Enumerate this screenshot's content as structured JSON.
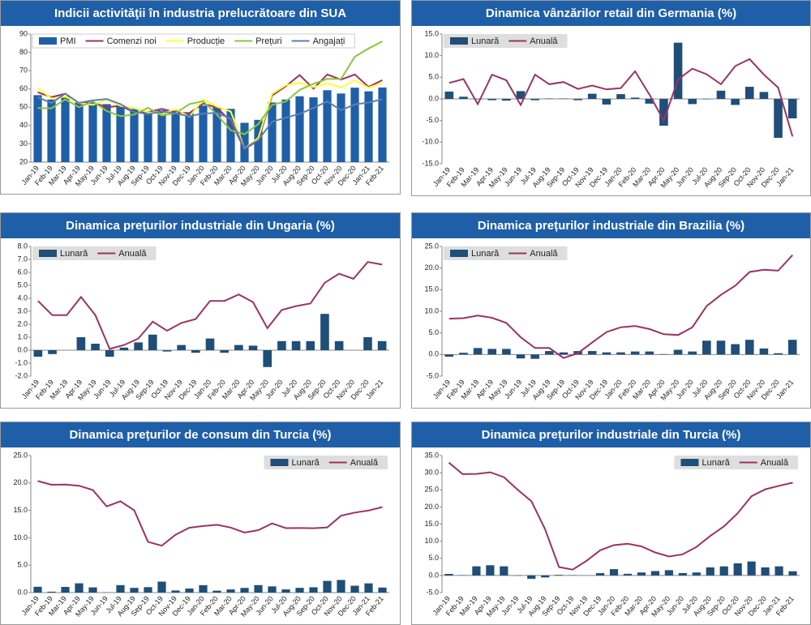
{
  "chart_data": [
    {
      "type": "combo",
      "title": "Indicii activităţii în industria prelucrătoare din SUA",
      "legend": "upper left",
      "categories": [
        "Jan-19",
        "Feb-19",
        "Mar-19",
        "Apr-19",
        "May-19",
        "Jun-19",
        "Jul-19",
        "Aug-19",
        "Sep-19",
        "Oct-19",
        "Nov-19",
        "Dec-19",
        "Jan-20",
        "Feb-20",
        "Mar-20",
        "Apr-20",
        "May-20",
        "Jun-20",
        "Jul-20",
        "Aug-20",
        "Sep-20",
        "Oct-20",
        "Nov-20",
        "Dec-20",
        "Jan-21",
        "Feb-21"
      ],
      "ylim": [
        20,
        90
      ],
      "yticks": [
        20,
        30,
        40,
        50,
        60,
        70,
        80,
        90
      ],
      "series": [
        {
          "name": "PMI",
          "type": "bar",
          "color": "#1f5fa8",
          "values": [
            56.6,
            54.2,
            55.3,
            52.8,
            52.1,
            51.7,
            51.2,
            49.1,
            47.8,
            48.3,
            48.1,
            47.2,
            50.9,
            50.1,
            49.1,
            41.5,
            43.1,
            52.6,
            54.2,
            56.0,
            55.4,
            59.3,
            57.5,
            60.7,
            58.7,
            60.8
          ]
        },
        {
          "name": "Comenzi noi",
          "type": "line",
          "color": "#993366",
          "values": [
            58.2,
            55.5,
            57.4,
            51.7,
            52.7,
            50.0,
            50.8,
            47.2,
            47.3,
            49.1,
            47.2,
            46.8,
            52.0,
            49.8,
            42.2,
            27.1,
            31.8,
            56.4,
            61.5,
            67.6,
            60.2,
            67.9,
            65.1,
            67.9,
            61.1,
            64.8
          ]
        },
        {
          "name": "Producție",
          "type": "line",
          "color": "#ffff33",
          "values": [
            60.5,
            54.8,
            55.8,
            52.3,
            51.3,
            54.1,
            50.8,
            49.5,
            47.3,
            46.2,
            49.1,
            44.8,
            54.3,
            50.3,
            47.7,
            27.5,
            33.2,
            57.3,
            62.1,
            63.3,
            61.0,
            63.0,
            60.8,
            64.8,
            60.7,
            63.2
          ]
        },
        {
          "name": "Prețuri",
          "type": "line",
          "color": "#8cc63f",
          "values": [
            49.6,
            49.4,
            54.3,
            50.0,
            53.2,
            47.9,
            45.1,
            46.0,
            49.7,
            45.5,
            46.7,
            51.7,
            53.3,
            45.9,
            37.4,
            35.3,
            40.8,
            51.3,
            53.2,
            59.5,
            62.8,
            65.5,
            65.4,
            77.6,
            82.1,
            86.0
          ]
        },
        {
          "name": "Angajați",
          "type": "line",
          "color": "#5b7fb5",
          "values": [
            55.5,
            52.3,
            57.5,
            52.4,
            53.7,
            54.5,
            51.7,
            47.4,
            46.3,
            47.7,
            46.6,
            45.1,
            46.6,
            46.9,
            43.8,
            27.5,
            32.1,
            42.1,
            44.3,
            46.4,
            49.6,
            53.2,
            48.4,
            51.5,
            52.6,
            54.4
          ]
        }
      ]
    },
    {
      "type": "combo",
      "title": "Dinamica vânzărilor retail din Germania (%)",
      "legend": "upper left",
      "categories": [
        "Jan-19",
        "Feb-19",
        "Mar-19",
        "Apr-19",
        "May-19",
        "Jun-19",
        "Jul-19",
        "Aug-19",
        "Sep-19",
        "Oct-19",
        "Nov-19",
        "Dec-19",
        "Jan-20",
        "Feb-20",
        "Mar-20",
        "Apr-20",
        "May-20",
        "Jun-20",
        "Jul-20",
        "Aug-20",
        "Sep-20",
        "Oct-20",
        "Nov-20",
        "Dec-20",
        "Jan-21"
      ],
      "ylim": [
        -15,
        15
      ],
      "yticks": [
        {
          "value": -15,
          "label": "-15.0"
        },
        {
          "value": -10,
          "label": "-10.0"
        },
        {
          "value": -5,
          "label": "-5.0"
        },
        {
          "value": 0,
          "label": "0.0"
        },
        {
          "value": 5,
          "label": "5.0"
        },
        {
          "value": 10,
          "label": "10.0"
        },
        {
          "value": 15,
          "label": "15.0"
        }
      ],
      "series": [
        {
          "name": "Lunară",
          "type": "bar",
          "color": "#1f4e79",
          "values": [
            1.7,
            0.5,
            -0.1,
            -0.3,
            -0.4,
            1.8,
            -0.3,
            0.1,
            0.1,
            -0.3,
            1.2,
            -1.3,
            1.1,
            0.3,
            -1.1,
            -6.2,
            13.0,
            -1.2,
            -0.1,
            1.9,
            -1.4,
            2.8,
            1.6,
            -9.0,
            -4.5
          ]
        },
        {
          "name": "Anuală",
          "type": "line",
          "color": "#993366",
          "values": [
            3.7,
            4.6,
            -1.2,
            5.6,
            4.3,
            -1.4,
            5.6,
            3.4,
            3.9,
            2.3,
            3.1,
            2.2,
            2.5,
            6.4,
            1.0,
            -5.0,
            4.5,
            7.0,
            5.7,
            3.4,
            7.6,
            9.2,
            5.6,
            2.6,
            -8.7
          ]
        }
      ]
    },
    {
      "type": "combo",
      "title": "Dinamica prețurilor industriale din Ungaria (%)",
      "legend": "upper left",
      "categories": [
        "Jan-19",
        "Feb-19",
        "Mar-19",
        "Apr-19",
        "May-19",
        "Jun-19",
        "Jul-19",
        "Aug-19",
        "Sep-19",
        "Oct-19",
        "Nov-19",
        "Dec-19",
        "Jan-20",
        "Feb-20",
        "Mar-20",
        "Apr-20",
        "May-20",
        "Jun-20",
        "Jul-20",
        "Aug-20",
        "Sep-20",
        "Oct-20",
        "Nov-20",
        "Dec-20",
        "Jan-21"
      ],
      "ylim": [
        -2,
        8
      ],
      "yticks": [
        {
          "value": -2,
          "label": "-2.0"
        },
        {
          "value": -1,
          "label": "-1.0"
        },
        {
          "value": 0,
          "label": "0.0"
        },
        {
          "value": 1,
          "label": "1.0"
        },
        {
          "value": 2,
          "label": "2.0"
        },
        {
          "value": 3,
          "label": "3.0"
        },
        {
          "value": 4,
          "label": "4.0"
        },
        {
          "value": 5,
          "label": "5.0"
        },
        {
          "value": 6,
          "label": "6.0"
        },
        {
          "value": 7,
          "label": "7.0"
        },
        {
          "value": 8,
          "label": "8.0"
        }
      ],
      "series": [
        {
          "name": "Lunară",
          "type": "bar",
          "color": "#1f4e79",
          "values": [
            -0.5,
            -0.3,
            0.0,
            1.0,
            0.5,
            -0.5,
            0.2,
            0.6,
            1.2,
            -0.1,
            0.4,
            -0.2,
            0.9,
            -0.2,
            0.4,
            0.35,
            -1.3,
            0.7,
            0.7,
            0.7,
            2.8,
            0.7,
            0.0,
            1.0,
            0.7
          ]
        },
        {
          "name": "Anuală",
          "type": "line",
          "color": "#993366",
          "values": [
            3.8,
            2.7,
            2.7,
            4.1,
            2.7,
            0.1,
            0.4,
            0.9,
            2.2,
            1.5,
            2.1,
            2.4,
            3.8,
            3.8,
            4.3,
            3.7,
            1.7,
            3.1,
            3.4,
            3.6,
            5.2,
            5.9,
            5.5,
            6.8,
            6.6
          ]
        }
      ]
    },
    {
      "type": "combo",
      "title": "Dinamica prețurilor industriale din Brazilia (%)",
      "legend": "upper left",
      "categories": [
        "Jan-19",
        "Feb-19",
        "Mar-19",
        "Apr-19",
        "May-19",
        "Jun-19",
        "Jul-19",
        "Aug-19",
        "Sep-19",
        "Oct-19",
        "Nov-19",
        "Dec-19",
        "Jan-20",
        "Feb-20",
        "Mar-20",
        "Apr-20",
        "May-20",
        "Jun-20",
        "Jul-20",
        "Aug-20",
        "Sep-20",
        "Oct-20",
        "Nov-20",
        "Dec-20",
        "Jan-21"
      ],
      "ylim": [
        -5,
        25
      ],
      "yticks": [
        {
          "value": -5,
          "label": "-5.0"
        },
        {
          "value": 0,
          "label": "0.0"
        },
        {
          "value": 5,
          "label": "5.0"
        },
        {
          "value": 10,
          "label": "10.0"
        },
        {
          "value": 15,
          "label": "15.0"
        },
        {
          "value": 20,
          "label": "20.0"
        },
        {
          "value": 25,
          "label": "25.0"
        }
      ],
      "series": [
        {
          "name": "Lunară",
          "type": "bar",
          "color": "#1f4e79",
          "values": [
            -0.5,
            0.4,
            1.5,
            1.3,
            1.3,
            -0.9,
            -1.0,
            0.8,
            0.5,
            0.8,
            0.8,
            0.5,
            0.5,
            0.7,
            0.7,
            0.1,
            1.1,
            0.7,
            3.2,
            3.2,
            2.4,
            3.4,
            1.4,
            0.3,
            3.4
          ]
        },
        {
          "name": "Anuală",
          "type": "line",
          "color": "#993366",
          "values": [
            8.3,
            8.4,
            9.0,
            8.5,
            7.3,
            4.0,
            1.5,
            1.5,
            -0.8,
            0.3,
            2.8,
            5.2,
            6.3,
            6.6,
            5.9,
            4.7,
            4.5,
            6.3,
            11.2,
            13.8,
            15.9,
            19.1,
            19.6,
            19.4,
            23.0
          ]
        }
      ]
    },
    {
      "type": "combo",
      "title": "Dinamica prețurilor de consum din Turcia (%)",
      "legend": "upper right",
      "categories": [
        "Jan-19",
        "Feb-19",
        "Mar-19",
        "Apr-19",
        "May-19",
        "Jun-19",
        "Jul-19",
        "Aug-19",
        "Sep-19",
        "Oct-19",
        "Nov-19",
        "Dec-19",
        "Jan-20",
        "Feb-20",
        "Mar-20",
        "Apr-20",
        "May-20",
        "Jun-20",
        "Jul-20",
        "Aug-20",
        "Sep-20",
        "Oct-20",
        "Nov-20",
        "Dec-20",
        "Jan-21",
        "Feb-21"
      ],
      "ylim": [
        0,
        25
      ],
      "yticks": [
        {
          "value": 0,
          "label": "0.0"
        },
        {
          "value": 5,
          "label": "5.0"
        },
        {
          "value": 10,
          "label": "10.0"
        },
        {
          "value": 15,
          "label": "15.0"
        },
        {
          "value": 20,
          "label": "20.0"
        },
        {
          "value": 25,
          "label": "25.0"
        }
      ],
      "series": [
        {
          "name": "Lunară",
          "type": "bar",
          "color": "#1f4e79",
          "values": [
            1.06,
            0.16,
            1.03,
            1.69,
            0.95,
            0.03,
            1.36,
            0.86,
            0.99,
            2.0,
            0.38,
            0.74,
            1.35,
            0.35,
            0.57,
            0.85,
            1.36,
            1.13,
            0.58,
            0.86,
            0.97,
            2.13,
            2.3,
            1.25,
            1.68,
            0.91
          ]
        },
        {
          "name": "Anuală",
          "type": "line",
          "color": "#993366",
          "values": [
            20.35,
            19.67,
            19.71,
            19.5,
            18.71,
            15.72,
            16.65,
            15.01,
            9.26,
            8.55,
            10.56,
            11.84,
            12.15,
            12.37,
            11.86,
            10.94,
            11.39,
            12.62,
            11.76,
            11.77,
            11.75,
            11.89,
            14.03,
            14.6,
            14.97,
            15.61
          ]
        }
      ]
    },
    {
      "type": "combo",
      "title": "Dinamica prețurilor industriale din Turcia (%)",
      "legend": "upper right",
      "categories": [
        "Jan-19",
        "Feb-19",
        "Mar-19",
        "Apr-19",
        "May-19",
        "Jun-19",
        "Jul-19",
        "Aug-19",
        "Sep-19",
        "Oct-19",
        "Nov-19",
        "Dec-19",
        "Jan-20",
        "Feb-20",
        "Mar-20",
        "Apr-20",
        "May-20",
        "Jun-20",
        "Jul-20",
        "Aug-20",
        "Sep-20",
        "Oct-20",
        "Nov-20",
        "Dec-20",
        "Jan-21",
        "Feb-21"
      ],
      "ylim": [
        -5,
        35
      ],
      "yticks": [
        {
          "value": -5,
          "label": "-5.0"
        },
        {
          "value": 0,
          "label": "0.0"
        },
        {
          "value": 5,
          "label": "5.0"
        },
        {
          "value": 10,
          "label": "10.0"
        },
        {
          "value": 15,
          "label": "15.0"
        },
        {
          "value": 20,
          "label": "20.0"
        },
        {
          "value": 25,
          "label": "25.0"
        },
        {
          "value": 30,
          "label": "30.0"
        },
        {
          "value": 35,
          "label": "35.0"
        }
      ],
      "series": [
        {
          "name": "Lunară",
          "type": "bar",
          "color": "#1f4e79",
          "values": [
            0.45,
            0.09,
            2.67,
            2.98,
            2.67,
            -0.09,
            -0.99,
            -0.59,
            0.18,
            0.09,
            0.0,
            0.69,
            1.84,
            0.48,
            0.87,
            1.28,
            1.54,
            0.69,
            0.87,
            2.35,
            2.65,
            3.55,
            4.08,
            2.36,
            2.66,
            1.22
          ]
        },
        {
          "name": "Anuală",
          "type": "line",
          "color": "#993366",
          "values": [
            32.93,
            29.59,
            29.64,
            30.12,
            28.71,
            25.04,
            21.66,
            13.45,
            2.45,
            1.7,
            4.26,
            7.36,
            8.84,
            9.26,
            8.5,
            6.71,
            5.53,
            6.17,
            8.33,
            11.53,
            14.33,
            18.2,
            23.11,
            25.15,
            26.16,
            27.09
          ]
        }
      ]
    }
  ]
}
